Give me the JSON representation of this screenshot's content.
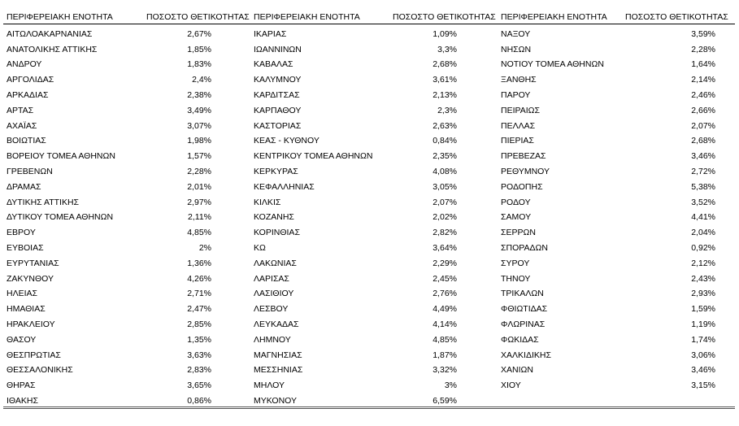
{
  "table": {
    "groups": [
      {
        "header": [
          "ΠΕΡΙΦΕΡΕΙΑΚΗ ΕΝΟΤΗΤΑ",
          "ΠΟΣΟΣΤΟ ΘΕΤΙΚΟΤΗΤΑΣ"
        ],
        "rows": [
          [
            "ΑΙΤΩΛΟΑΚΑΡΝΑΝΙΑΣ",
            "2,67%"
          ],
          [
            "ΑΝΑΤΟΛΙΚΗΣ ΑΤΤΙΚΗΣ",
            "1,85%"
          ],
          [
            "ΑΝΔΡΟΥ",
            "1,83%"
          ],
          [
            "ΑΡΓΟΛΙΔΑΣ",
            "2,4%"
          ],
          [
            "ΑΡΚΑΔΙΑΣ",
            "2,38%"
          ],
          [
            "ΑΡΤΑΣ",
            "3,49%"
          ],
          [
            "ΑΧΑΪΑΣ",
            "3,07%"
          ],
          [
            "ΒΟΙΩΤΙΑΣ",
            "1,98%"
          ],
          [
            "ΒΟΡΕΙΟΥ ΤΟΜΕΑ ΑΘΗΝΩΝ",
            "1,57%"
          ],
          [
            "ΓΡΕΒΕΝΩΝ",
            "2,28%"
          ],
          [
            "ΔΡΑΜΑΣ",
            "2,01%"
          ],
          [
            "ΔΥΤΙΚΗΣ ΑΤΤΙΚΗΣ",
            "2,97%"
          ],
          [
            "ΔΥΤΙΚΟΥ ΤΟΜΕΑ ΑΘΗΝΩΝ",
            "2,11%"
          ],
          [
            "ΕΒΡΟΥ",
            "4,85%"
          ],
          [
            "ΕΥΒΟΙΑΣ",
            "2%"
          ],
          [
            "ΕΥΡΥΤΑΝΙΑΣ",
            "1,36%"
          ],
          [
            "ΖΑΚΥΝΘΟΥ",
            "4,26%"
          ],
          [
            "ΗΛΕΙΑΣ",
            "2,71%"
          ],
          [
            "ΗΜΑΘΙΑΣ",
            "2,47%"
          ],
          [
            "ΗΡΑΚΛΕΙΟΥ",
            "2,85%"
          ],
          [
            "ΘΑΣΟΥ",
            "1,35%"
          ],
          [
            "ΘΕΣΠΡΩΤΙΑΣ",
            "3,63%"
          ],
          [
            "ΘΕΣΣΑΛΟΝΙΚΗΣ",
            "2,83%"
          ],
          [
            "ΘΗΡΑΣ",
            "3,65%"
          ],
          [
            "ΙΘΑΚΗΣ",
            "0,86%"
          ]
        ]
      },
      {
        "header": [
          "ΠΕΡΙΦΕΡΕΙΑΚΗ ΕΝΟΤΗΤΑ",
          "ΠΟΣΟΣΤΟ ΘΕΤΙΚΟΤΗΤΑΣ"
        ],
        "rows": [
          [
            "ΙΚΑΡΙΑΣ",
            "1,09%"
          ],
          [
            "ΙΩΑΝΝΙΝΩΝ",
            "3,3%"
          ],
          [
            "ΚΑΒΑΛΑΣ",
            "2,68%"
          ],
          [
            "ΚΑΛΥΜΝΟΥ",
            "3,61%"
          ],
          [
            "ΚΑΡΔΙΤΣΑΣ",
            "2,13%"
          ],
          [
            "ΚΑΡΠΑΘΟΥ",
            "2,3%"
          ],
          [
            "ΚΑΣΤΟΡΙΑΣ",
            "2,63%"
          ],
          [
            "ΚΕΑΣ - ΚΥΘΝΟΥ",
            "0,84%"
          ],
          [
            "ΚΕΝΤΡΙΚΟΥ ΤΟΜΕΑ ΑΘΗΝΩΝ",
            "2,35%"
          ],
          [
            "ΚΕΡΚΥΡΑΣ",
            "4,08%"
          ],
          [
            "ΚΕΦΑΛΛΗΝΙΑΣ",
            "3,05%"
          ],
          [
            "ΚΙΛΚΙΣ",
            "2,07%"
          ],
          [
            "ΚΟΖΑΝΗΣ",
            "2,02%"
          ],
          [
            "ΚΟΡΙΝΘΙΑΣ",
            "2,82%"
          ],
          [
            "ΚΩ",
            "3,64%"
          ],
          [
            "ΛΑΚΩΝΙΑΣ",
            "2,29%"
          ],
          [
            "ΛΑΡΙΣΑΣ",
            "2,45%"
          ],
          [
            "ΛΑΣΙΘΙΟΥ",
            "2,76%"
          ],
          [
            "ΛΕΣΒΟΥ",
            "4,49%"
          ],
          [
            "ΛΕΥΚΑΔΑΣ",
            "4,14%"
          ],
          [
            "ΛΗΜΝΟΥ",
            "4,85%"
          ],
          [
            "ΜΑΓΝΗΣΙΑΣ",
            "1,87%"
          ],
          [
            "ΜΕΣΣΗΝΙΑΣ",
            "3,32%"
          ],
          [
            "ΜΗΛΟΥ",
            "3%"
          ],
          [
            "ΜΥΚΟΝΟΥ",
            "6,59%"
          ]
        ]
      },
      {
        "header": [
          "ΠΕΡΙΦΕΡΕΙΑΚΗ ΕΝΟΤΗΤΑ",
          "ΠΟΣΟΣΤΟ ΘΕΤΙΚΟΤΗΤΑΣ"
        ],
        "rows": [
          [
            "ΝΑΞΟΥ",
            "3,59%"
          ],
          [
            "ΝΗΣΩΝ",
            "2,28%"
          ],
          [
            "ΝΟΤΙΟΥ ΤΟΜΕΑ ΑΘΗΝΩΝ",
            "1,64%"
          ],
          [
            "ΞΑΝΘΗΣ",
            "2,14%"
          ],
          [
            "ΠΑΡΟΥ",
            "2,46%"
          ],
          [
            "ΠΕΙΡΑΙΩΣ",
            "2,66%"
          ],
          [
            "ΠΕΛΛΑΣ",
            "2,07%"
          ],
          [
            "ΠΙΕΡΙΑΣ",
            "2,68%"
          ],
          [
            "ΠΡΕΒΕΖΑΣ",
            "3,46%"
          ],
          [
            "ΡΕΘΥΜΝΟΥ",
            "2,72%"
          ],
          [
            "ΡΟΔΟΠΗΣ",
            "5,38%"
          ],
          [
            "ΡΟΔΟΥ",
            "3,52%"
          ],
          [
            "ΣΑΜΟΥ",
            "4,41%"
          ],
          [
            "ΣΕΡΡΩΝ",
            "2,04%"
          ],
          [
            "ΣΠΟΡΑΔΩΝ",
            "0,92%"
          ],
          [
            "ΣΥΡΟΥ",
            "2,12%"
          ],
          [
            "ΤΗΝΟΥ",
            "2,43%"
          ],
          [
            "ΤΡΙΚΑΛΩΝ",
            "2,93%"
          ],
          [
            "ΦΘΙΩΤΙΔΑΣ",
            "1,59%"
          ],
          [
            "ΦΛΩΡΙΝΑΣ",
            "1,19%"
          ],
          [
            "ΦΩΚΙΔΑΣ",
            "1,74%"
          ],
          [
            "ΧΑΛΚΙΔΙΚΗΣ",
            "3,06%"
          ],
          [
            "ΧΑΝΙΩΝ",
            "3,46%"
          ],
          [
            "ΧΙΟΥ",
            "3,15%"
          ]
        ]
      }
    ]
  }
}
